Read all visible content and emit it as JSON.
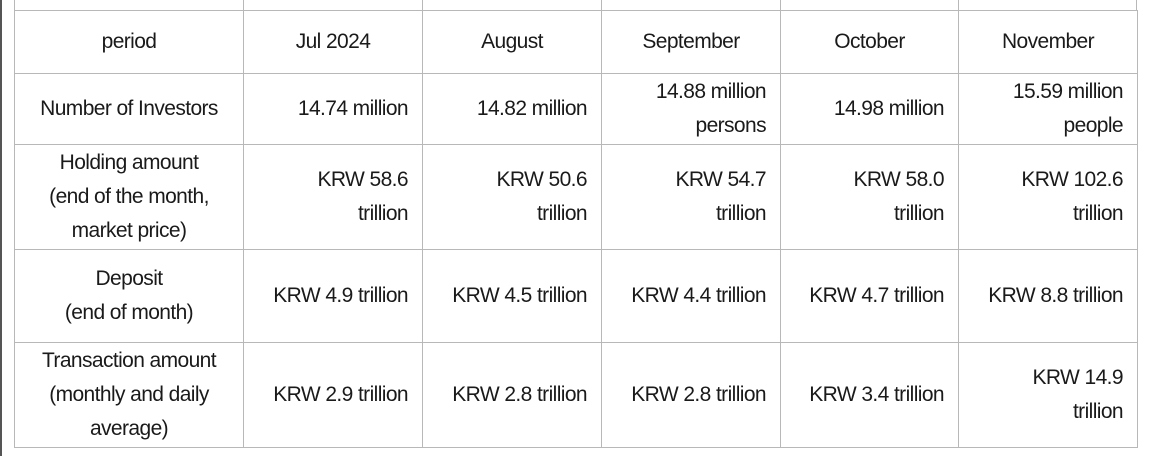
{
  "table": {
    "header": {
      "label": "period",
      "columns": [
        "Jul 2024",
        "August",
        "September",
        "October",
        "November"
      ]
    },
    "rows": [
      {
        "label": [
          "Number of Investors"
        ],
        "cells": [
          [
            "14.74 million"
          ],
          [
            "14.82 million"
          ],
          [
            "14.88 million",
            "persons"
          ],
          [
            "14.98 million"
          ],
          [
            "15.59 million",
            "people"
          ]
        ]
      },
      {
        "label": [
          "Holding amount",
          "(end of the month,",
          "market price)"
        ],
        "cells": [
          [
            "KRW 58.6",
            "trillion"
          ],
          [
            "KRW 50.6",
            "trillion"
          ],
          [
            "KRW 54.7",
            "trillion"
          ],
          [
            "KRW 58.0",
            "trillion"
          ],
          [
            "KRW 102.6",
            "trillion"
          ]
        ]
      },
      {
        "label": [
          "Deposit",
          "(end of month)"
        ],
        "cells": [
          [
            "KRW 4.9 trillion"
          ],
          [
            "KRW 4.5 trillion"
          ],
          [
            "KRW 4.4 trillion"
          ],
          [
            "KRW 4.7 trillion"
          ],
          [
            "KRW 8.8 trillion"
          ]
        ]
      },
      {
        "label": [
          "Transaction amount",
          "(monthly and daily",
          "average)"
        ],
        "cells": [
          [
            "KRW 2.9 trillion"
          ],
          [
            "KRW 2.8 trillion"
          ],
          [
            "KRW 2.8 trillion"
          ],
          [
            "KRW 3.4 trillion"
          ],
          [
            "KRW 14.9",
            "trillion"
          ]
        ]
      }
    ]
  }
}
